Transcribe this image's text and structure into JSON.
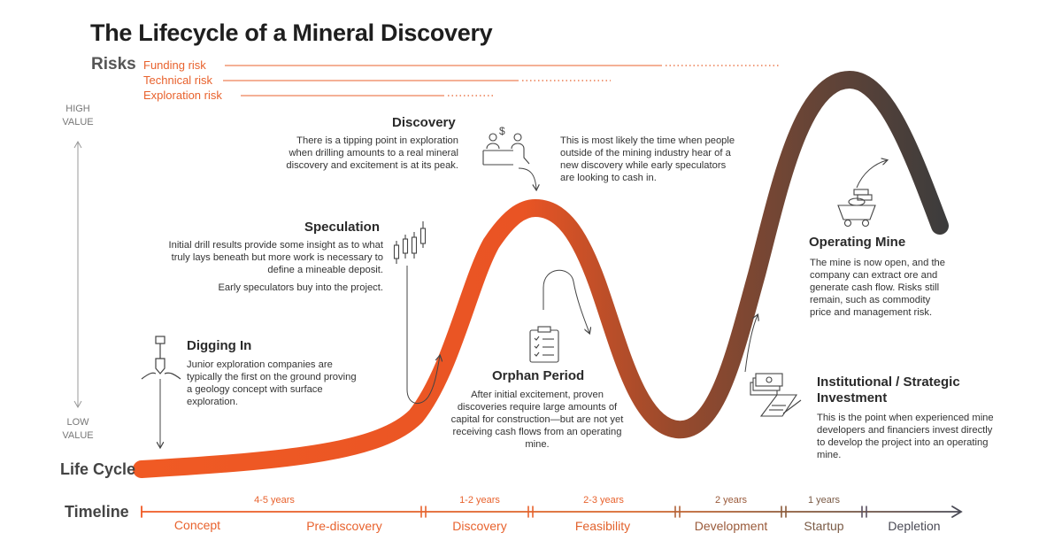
{
  "title": "The Lifecycle of a Mineral Discovery",
  "risks": {
    "heading": "Risks",
    "items": [
      "Funding risk",
      "Technical risk",
      "Exploration risk"
    ]
  },
  "value_axis": {
    "high_line1": "HIGH",
    "high_line2": "VALUE",
    "low_line1": "LOW",
    "low_line2": "VALUE"
  },
  "stages": {
    "discovery": {
      "heading": "Discovery",
      "text": "There is a tipping point in exploration when drilling amounts to a real mineral discovery and excitement is at its peak.",
      "side_text": "This is most likely the time when people outside of the mining industry hear of a new discovery while early speculators are looking to cash in."
    },
    "speculation": {
      "heading": "Speculation",
      "text": "Initial drill results provide some insight as to what truly lays beneath but more work is necessary to define a mineable deposit.",
      "text2": "Early speculators buy into the project."
    },
    "digging_in": {
      "heading": "Digging In",
      "text": "Junior exploration companies are typically the first on the ground proving a geology concept with surface exploration."
    },
    "orphan": {
      "heading": "Orphan Period",
      "text": "After initial excitement, proven discoveries require large amounts of capital for construction—but are not yet receiving cash flows from an operating mine."
    },
    "operating": {
      "heading": "Operating Mine",
      "text": "The mine is now open, and the company can extract ore and generate cash flow. Risks still remain, such as commodity price and management risk."
    },
    "institutional": {
      "heading": "Institutional / Strategic Investment",
      "text": "This is the point when experienced mine developers and financiers invest directly to develop the project into an operating mine."
    }
  },
  "life_cycle_label": "Life Cycle",
  "timeline": {
    "label": "Timeline",
    "phases": [
      "Concept",
      "Pre-discovery",
      "Discovery",
      "Feasibility",
      "Development",
      "Startup",
      "Depletion"
    ],
    "durations": [
      "4-5 years",
      "1-2 years",
      "2-3 years",
      "2 years",
      "1 years"
    ]
  },
  "colors": {
    "orange": "#f05a24",
    "brown": "#7a4530",
    "dark": "#3a3a3a",
    "risk_text": "#e8622d"
  }
}
